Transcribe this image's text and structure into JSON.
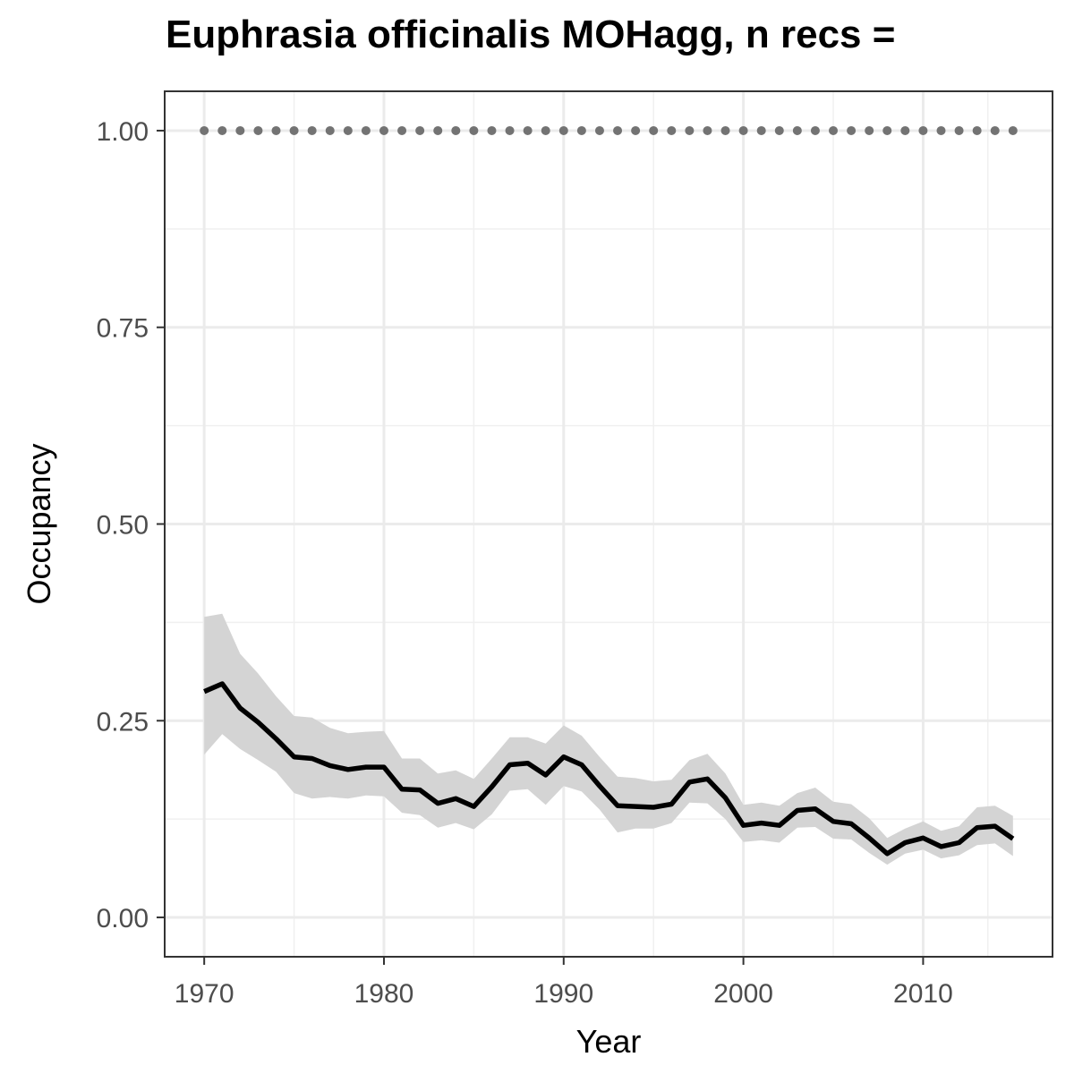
{
  "chart_data": {
    "type": "line",
    "title": "Euphrasia officinalis MOHagg, n recs =",
    "xlabel": "Year",
    "ylabel": "Occupancy",
    "xlim": [
      1967.8,
      2017.2
    ],
    "ylim": [
      -0.05,
      1.05
    ],
    "x_ticks": [
      1970,
      1980,
      1990,
      2000,
      2010
    ],
    "y_ticks": [
      0,
      0.25,
      0.5,
      0.75,
      1.0
    ],
    "y_tick_labels": [
      "0.00",
      "0.25",
      "0.50",
      "0.75",
      "1.00"
    ],
    "grid": true,
    "legend": "none",
    "x": [
      1970,
      1971,
      1972,
      1973,
      1974,
      1975,
      1976,
      1977,
      1978,
      1979,
      1980,
      1981,
      1982,
      1983,
      1984,
      1985,
      1986,
      1987,
      1988,
      1989,
      1990,
      1991,
      1992,
      1993,
      1994,
      1995,
      1996,
      1997,
      1998,
      1999,
      2000,
      2001,
      2002,
      2003,
      2004,
      2005,
      2006,
      2007,
      2008,
      2009,
      2010,
      2011,
      2012,
      2013,
      2014,
      2015
    ],
    "series": [
      {
        "type": "line",
        "color": "#000000",
        "values": [
          0.287,
          0.297,
          0.266,
          0.248,
          0.227,
          0.204,
          0.202,
          0.193,
          0.188,
          0.191,
          0.191,
          0.163,
          0.162,
          0.145,
          0.151,
          0.141,
          0.166,
          0.194,
          0.196,
          0.181,
          0.204,
          0.194,
          0.167,
          0.142,
          0.141,
          0.14,
          0.144,
          0.172,
          0.176,
          0.152,
          0.117,
          0.12,
          0.117,
          0.136,
          0.138,
          0.122,
          0.119,
          0.101,
          0.081,
          0.095,
          0.101,
          0.09,
          0.095,
          0.114,
          0.116,
          0.1
        ]
      },
      {
        "type": "ribbon",
        "color": "#d4d4d4",
        "upper": [
          0.382,
          0.386,
          0.335,
          0.31,
          0.281,
          0.256,
          0.254,
          0.241,
          0.234,
          0.236,
          0.237,
          0.202,
          0.202,
          0.183,
          0.187,
          0.176,
          0.202,
          0.229,
          0.229,
          0.221,
          0.244,
          0.231,
          0.204,
          0.179,
          0.177,
          0.173,
          0.175,
          0.2,
          0.208,
          0.183,
          0.143,
          0.146,
          0.142,
          0.158,
          0.165,
          0.147,
          0.144,
          0.126,
          0.101,
          0.113,
          0.122,
          0.11,
          0.116,
          0.14,
          0.142,
          0.129
        ],
        "lower": [
          0.207,
          0.233,
          0.214,
          0.2,
          0.185,
          0.158,
          0.151,
          0.153,
          0.151,
          0.155,
          0.154,
          0.133,
          0.13,
          0.114,
          0.12,
          0.112,
          0.131,
          0.161,
          0.163,
          0.143,
          0.167,
          0.16,
          0.137,
          0.108,
          0.113,
          0.113,
          0.12,
          0.146,
          0.145,
          0.125,
          0.096,
          0.098,
          0.095,
          0.114,
          0.115,
          0.1,
          0.099,
          0.082,
          0.067,
          0.081,
          0.086,
          0.075,
          0.079,
          0.092,
          0.094,
          0.078
        ]
      },
      {
        "type": "points",
        "color": "#737373",
        "values": [
          1,
          1,
          1,
          1,
          1,
          1,
          1,
          1,
          1,
          1,
          1,
          1,
          1,
          1,
          1,
          1,
          1,
          1,
          1,
          1,
          1,
          1,
          1,
          1,
          1,
          1,
          1,
          1,
          1,
          1,
          1,
          1,
          1,
          1,
          1,
          1,
          1,
          1,
          1,
          1,
          1,
          1,
          1,
          1,
          1,
          1
        ]
      }
    ]
  }
}
